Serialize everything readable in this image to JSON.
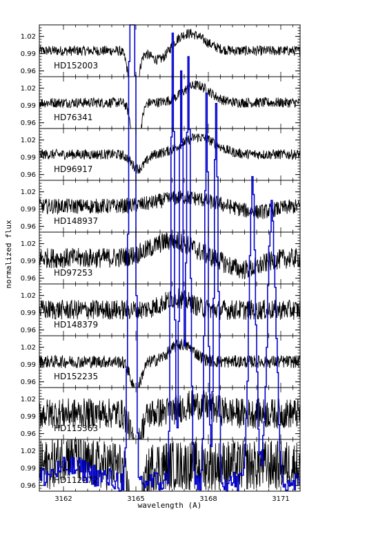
{
  "chart_data": {
    "type": "line",
    "xlabel": "wavelength (A)",
    "ylabel": "normalized flux",
    "xlim": [
      3161.0,
      3171.8
    ],
    "ylim": [
      0.95,
      1.04
    ],
    "x_ticks": [
      "3162",
      "3165",
      "3168",
      "3171"
    ],
    "y_ticks": [
      "1.02",
      "0.99",
      "0.96"
    ],
    "grid": false,
    "colors": {
      "spectrum": "#000000",
      "overlay": "#0000cc"
    },
    "panels": [
      {
        "star": "HD152003",
        "noise": 0.004,
        "features": [
          {
            "c": 3164.9,
            "w": 0.25,
            "d": -0.1
          },
          {
            "c": 3167.2,
            "w": 0.9,
            "d": 0.03
          },
          {
            "c": 3166.0,
            "w": 0.5,
            "d": -0.02
          }
        ]
      },
      {
        "star": "HD76341",
        "noise": 0.004,
        "features": [
          {
            "c": 3165.0,
            "w": 0.25,
            "d": -0.09
          },
          {
            "c": 3167.5,
            "w": 0.8,
            "d": 0.03
          }
        ]
      },
      {
        "star": "HD96917",
        "noise": 0.004,
        "features": [
          {
            "c": 3165.1,
            "w": 0.4,
            "d": -0.025
          },
          {
            "c": 3167.6,
            "w": 1.0,
            "d": 0.03
          }
        ]
      },
      {
        "star": "HD148937",
        "noise": 0.006,
        "features": [
          {
            "c": 3167.0,
            "w": 1.4,
            "d": 0.015
          },
          {
            "c": 3170.0,
            "w": 1.0,
            "d": -0.01
          }
        ]
      },
      {
        "star": "HD97253",
        "noise": 0.008,
        "features": [
          {
            "c": 3166.5,
            "w": 1.2,
            "d": 0.03
          },
          {
            "c": 3169.5,
            "w": 1.0,
            "d": -0.02
          }
        ]
      },
      {
        "star": "HD148379",
        "noise": 0.008,
        "features": [
          {
            "c": 3166.7,
            "w": 0.8,
            "d": 0.02
          }
        ]
      },
      {
        "star": "HD152235",
        "noise": 0.005,
        "features": [
          {
            "c": 3165.0,
            "w": 0.3,
            "d": -0.05
          },
          {
            "c": 3166.9,
            "w": 0.7,
            "d": 0.03
          }
        ]
      },
      {
        "star": "HD115363",
        "noise": 0.012,
        "features": [
          {
            "c": 3165.0,
            "w": 0.3,
            "d": -0.06
          },
          {
            "c": 3167.5,
            "w": 1.0,
            "d": 0.015
          }
        ]
      },
      {
        "star": "HD112272",
        "noise": 0.02,
        "features": [
          {
            "c": 3165.0,
            "w": 0.35,
            "d": -0.12
          },
          {
            "c": 3162.2,
            "w": 0.5,
            "d": 0.02
          }
        ]
      }
    ],
    "overlay": {
      "color": "#0000cc",
      "peaks": [
        {
          "x": 3164.75,
          "y": 1.04,
          "w": 0.12
        },
        {
          "x": 3164.9,
          "y": 1.03,
          "w": 0.1
        },
        {
          "x": 3166.5,
          "y": 0.975,
          "w": 0.1
        },
        {
          "x": 3166.85,
          "y": 0.9,
          "w": 0.1
        },
        {
          "x": 3167.15,
          "y": 0.9,
          "w": 0.12
        },
        {
          "x": 3167.9,
          "y": 0.83,
          "w": 0.1
        },
        {
          "x": 3168.3,
          "y": 0.8,
          "w": 0.12
        },
        {
          "x": 3169.8,
          "y": 0.63,
          "w": 0.2
        },
        {
          "x": 3170.6,
          "y": 0.58,
          "w": 0.25
        }
      ]
    }
  }
}
